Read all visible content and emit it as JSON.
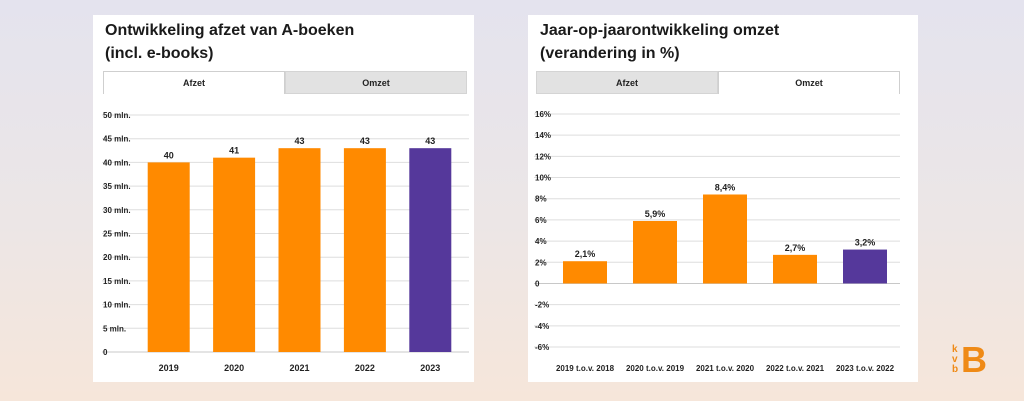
{
  "left_card": {
    "title_line1": "Ontwikkeling afzet van A-boeken",
    "title_line2": "(incl. e-books)",
    "tabs": [
      {
        "label": "Afzet",
        "active": true
      },
      {
        "label": "Omzet",
        "active": false
      }
    ]
  },
  "right_card": {
    "title_line1": "Jaar-op-jaarontwikkeling omzet",
    "title_line2": "(verandering in %)",
    "tabs": [
      {
        "label": "Afzet",
        "active": false
      },
      {
        "label": "Omzet",
        "active": true
      }
    ]
  },
  "colors": {
    "orange": "#ff8a00",
    "purple": "#55389b",
    "grid": "#dedede",
    "text": "#222222"
  },
  "logo": {
    "small": "kvb",
    "big": "B",
    "color": "#ef8a16"
  },
  "chart_data": [
    {
      "type": "bar",
      "title": "Ontwikkeling afzet van A-boeken (incl. e-books)",
      "categories": [
        "2019",
        "2020",
        "2021",
        "2022",
        "2023"
      ],
      "values": [
        40,
        41,
        43,
        43,
        43
      ],
      "value_labels": [
        "40",
        "41",
        "43",
        "43",
        "43"
      ],
      "bar_colors": [
        "orange",
        "orange",
        "orange",
        "orange",
        "purple"
      ],
      "y_ticks": [
        0,
        5,
        10,
        15,
        20,
        25,
        30,
        35,
        40,
        45,
        50
      ],
      "y_tick_labels": [
        "0",
        "5 mln.",
        "10 mln.",
        "15 mln.",
        "20 mln.",
        "25 mln.",
        "30 mln.",
        "35 mln.",
        "40 mln.",
        "45 mln.",
        "50 mln."
      ],
      "ylim": [
        0,
        50
      ],
      "grid": true,
      "xlabel": "",
      "ylabel": ""
    },
    {
      "type": "bar",
      "title": "Jaar-op-jaarontwikkeling omzet (verandering in %)",
      "categories": [
        "2019 t.o.v. 2018",
        "2020 t.o.v. 2019",
        "2021 t.o.v. 2020",
        "2022 t.o.v. 2021",
        "2023 t.o.v. 2022"
      ],
      "values": [
        2.1,
        5.9,
        8.4,
        2.7,
        3.2
      ],
      "value_labels": [
        "2,1%",
        "5,9%",
        "8,4%",
        "2,7%",
        "3,2%"
      ],
      "bar_colors": [
        "orange",
        "orange",
        "orange",
        "orange",
        "purple"
      ],
      "y_ticks": [
        -6,
        -4,
        -2,
        0,
        2,
        4,
        6,
        8,
        10,
        12,
        14,
        16
      ],
      "y_tick_labels": [
        "-6%",
        "-4%",
        "-2%",
        "0",
        "2%",
        "4%",
        "6%",
        "8%",
        "10%",
        "12%",
        "14%",
        "16%"
      ],
      "ylim": [
        -6,
        16
      ],
      "grid": true,
      "xlabel": "",
      "ylabel": ""
    }
  ]
}
